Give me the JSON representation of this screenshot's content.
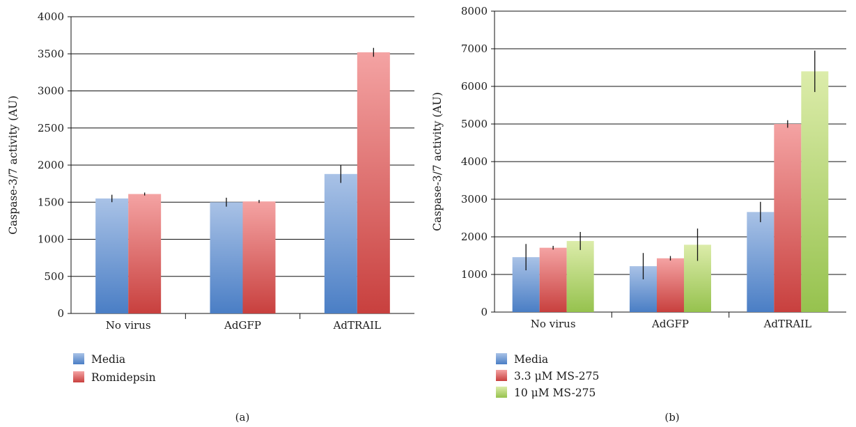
{
  "chart_data": [
    {
      "type": "bar",
      "panel_label": "(a)",
      "ylabel": "Caspase-3/7 activity (AU)",
      "ylim": [
        0,
        4000
      ],
      "yticks": [
        0,
        500,
        1000,
        1500,
        2000,
        2500,
        3000,
        3500,
        4000
      ],
      "categories": [
        "No virus",
        "AdGFP",
        "AdTRAIL"
      ],
      "series": [
        {
          "name": "Media",
          "values": [
            1550,
            1500,
            1880
          ],
          "errors": [
            50,
            60,
            120
          ]
        },
        {
          "name": "Romidepsin",
          "values": [
            1610,
            1510,
            3520
          ],
          "errors": [
            20,
            20,
            60
          ]
        }
      ],
      "grid": true,
      "legend_position": "bottom-left"
    },
    {
      "type": "bar",
      "panel_label": "(b)",
      "ylabel": "Caspase-3/7 activity (AU)",
      "ylim": [
        0,
        8000
      ],
      "yticks": [
        0,
        1000,
        2000,
        3000,
        4000,
        5000,
        6000,
        7000,
        8000
      ],
      "categories": [
        "No virus",
        "AdGFP",
        "AdTRAIL"
      ],
      "series": [
        {
          "name": "Media",
          "values": [
            1460,
            1220,
            2660
          ],
          "errors": [
            350,
            350,
            270
          ]
        },
        {
          "name": "3.3 μM MS-275",
          "values": [
            1710,
            1430,
            5000
          ],
          "errors": [
            50,
            60,
            100
          ]
        },
        {
          "name": "10 μM MS-275",
          "values": [
            1890,
            1790,
            6400
          ],
          "errors": [
            240,
            430,
            550
          ]
        }
      ],
      "grid": true,
      "legend_position": "bottom-left"
    }
  ],
  "colors": {
    "blue_top": "#a9c2e6",
    "blue_bottom": "#4a7ec5",
    "red_top": "#f4a3a3",
    "red_bottom": "#c8403e",
    "green_top": "#dcecaa",
    "green_bottom": "#96c24e"
  }
}
